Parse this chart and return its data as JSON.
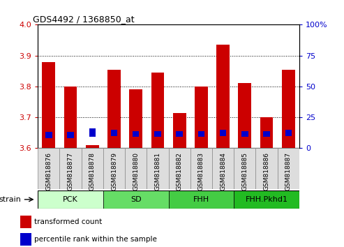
{
  "title": "GDS4492 / 1368850_at",
  "samples": [
    "GSM818876",
    "GSM818877",
    "GSM818878",
    "GSM818879",
    "GSM818880",
    "GSM818881",
    "GSM818882",
    "GSM818883",
    "GSM818884",
    "GSM818885",
    "GSM818886",
    "GSM818887"
  ],
  "red_values": [
    3.88,
    3.8,
    3.61,
    3.855,
    3.79,
    3.845,
    3.715,
    3.8,
    3.935,
    3.81,
    3.7,
    3.855
  ],
  "blue_bottom_pct": [
    8,
    8,
    9,
    10,
    9,
    9,
    9,
    9,
    10,
    9,
    9,
    10
  ],
  "blue_top_pct": [
    13,
    13,
    16,
    15,
    14,
    14,
    14,
    14,
    15,
    14,
    14,
    15
  ],
  "y_min": 3.6,
  "y_max": 4.0,
  "y_ticks": [
    3.6,
    3.7,
    3.8,
    3.9,
    4.0
  ],
  "y2_ticks": [
    0,
    25,
    50,
    75,
    100
  ],
  "bar_width": 0.6,
  "red_color": "#cc0000",
  "blue_color": "#0000cc",
  "groups": [
    {
      "label": "PCK",
      "start": 0,
      "end": 3,
      "color": "#ccffcc"
    },
    {
      "label": "SD",
      "start": 3,
      "end": 6,
      "color": "#66dd66"
    },
    {
      "label": "FHH",
      "start": 6,
      "end": 9,
      "color": "#44cc44"
    },
    {
      "label": "FHH.Pkhd1",
      "start": 9,
      "end": 12,
      "color": "#22bb22"
    }
  ],
  "tick_color_left": "#cc0000",
  "tick_color_right": "#0000cc",
  "bg_color": "#dddddd",
  "legend_red": "transformed count",
  "legend_blue": "percentile rank within the sample"
}
